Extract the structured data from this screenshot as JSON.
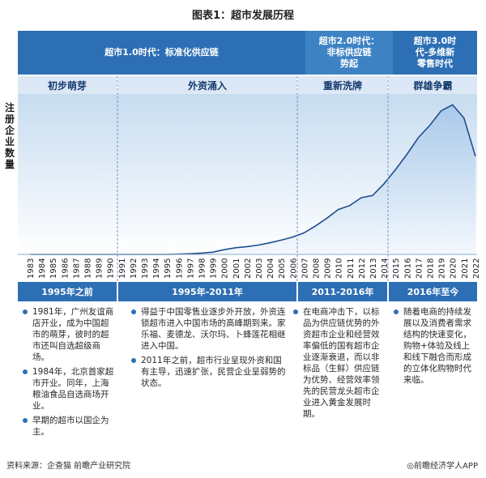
{
  "header": {
    "title": "图表1：超市发展历程"
  },
  "eras": [
    {
      "label": "超市1.0时代：标准化供应链"
    },
    {
      "label": "超市2.0时代：\n非标供应链\n势起"
    },
    {
      "label": "超市3.0时\n代-多维新\n零售时代"
    }
  ],
  "phases": [
    "初步萌芽",
    "外资涌入",
    "重新洗牌",
    "群雄争霸"
  ],
  "y_axis_label": "注册企业数量",
  "periods": [
    "1995年之前",
    "1995年-2011年",
    "2011-2016年",
    "2016年至今"
  ],
  "notes": {
    "col1": [
      "1981年，广州友谊商店开业，成为中国超市的萌芽，彼时的超市还叫自选超级商场。",
      "1984年，北京首家超市开业。同年，上海粮油食品自选商场开业。",
      "早期的超市以国企为主。"
    ],
    "col2": [
      "得益于中国零售业逐步外开放，外资连锁超市进入中国市场的高峰期到来。家乐福、麦德龙、沃尔玛、卜蜂莲花相继进入中国。",
      "2011年之前，超市行业呈现外资和国有主导，迅速扩张，民营企业呈弱势的状态。"
    ],
    "col3": [
      "在电商冲击下，以标品为供应链优势的外资超市企业和经营效率偏低的国有超市企业逐渐衰退，而以非标品（生鲜）供应链为优势、经营效率领先的民营龙头超市企业进入黄金发展时期。"
    ],
    "col4": [
      "随着电商的持续发展以及消费者需求结构的快速变化，购物+体验及线上和线下融合而形成的立体化购物时代来临。"
    ]
  },
  "footer": {
    "source": "资料来源：企查猫 前瞻产业研究院",
    "brand": "◎前瞻经济学人APP"
  },
  "colors": {
    "primary": "#2d6fb4",
    "line": "#1f4e8c",
    "area_top": "#a9c9ea",
    "area_bottom": "#f3f8fd"
  },
  "chart_data": {
    "type": "area",
    "title": "",
    "xlabel": "",
    "ylabel": "注册企业数量",
    "x": [
      "1983",
      "1984",
      "1985",
      "1986",
      "1987",
      "1988",
      "1989",
      "1990",
      "1991",
      "1992",
      "1993",
      "1994",
      "1995",
      "1996",
      "1997",
      "1998",
      "1999",
      "2000",
      "2001",
      "2002",
      "2003",
      "2004",
      "2005",
      "2006",
      "2007",
      "2008",
      "2009",
      "2010",
      "2011",
      "2012",
      "2013",
      "2014",
      "2015",
      "2016",
      "2017",
      "2018",
      "2019",
      "2020",
      "2021",
      "2022"
    ],
    "values": [
      0.0,
      0.0,
      0.0,
      0.0,
      0.0,
      0.0,
      0.0,
      0.0,
      0.0,
      0.0,
      0.0,
      0.0,
      0.0,
      0.1,
      0.3,
      0.6,
      1.0,
      2.1,
      3.0,
      3.5,
      4.2,
      5.2,
      6.4,
      7.8,
      9.7,
      12.8,
      16.3,
      20.2,
      22.0,
      25.5,
      26.5,
      31.8,
      38.1,
      45.0,
      52.5,
      58.0,
      64.6,
      67.3,
      61.4,
      44.2
    ],
    "ylim": [
      0,
      70
    ],
    "grid": false,
    "legend": "none"
  }
}
